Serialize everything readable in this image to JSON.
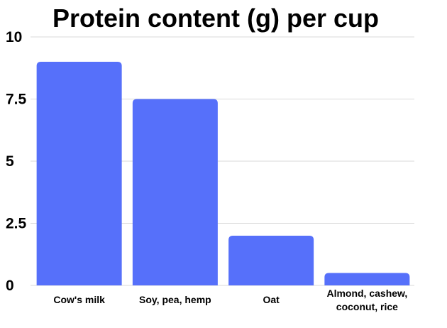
{
  "chart_data": {
    "type": "bar",
    "title": "Protein content (g) per cup",
    "categories": [
      "Cow's milk",
      "Soy, pea, hemp",
      "Oat",
      "Almond, cashew, coconut, rice"
    ],
    "category_label_lines": [
      [
        "Cow's milk"
      ],
      [
        "Soy, pea, hemp"
      ],
      [
        "Oat"
      ],
      [
        "Almond, cashew,",
        "coconut, rice"
      ]
    ],
    "values": [
      9,
      7.5,
      2,
      0.5
    ],
    "ylim": [
      0,
      10
    ],
    "yticks": [
      "0",
      "2.5",
      "5",
      "7.5",
      "10"
    ],
    "ytick_values": [
      0,
      2.5,
      5,
      7.5,
      10
    ],
    "xlabel": "",
    "ylabel": "",
    "grid": true,
    "bar_color": "#5670fa"
  }
}
